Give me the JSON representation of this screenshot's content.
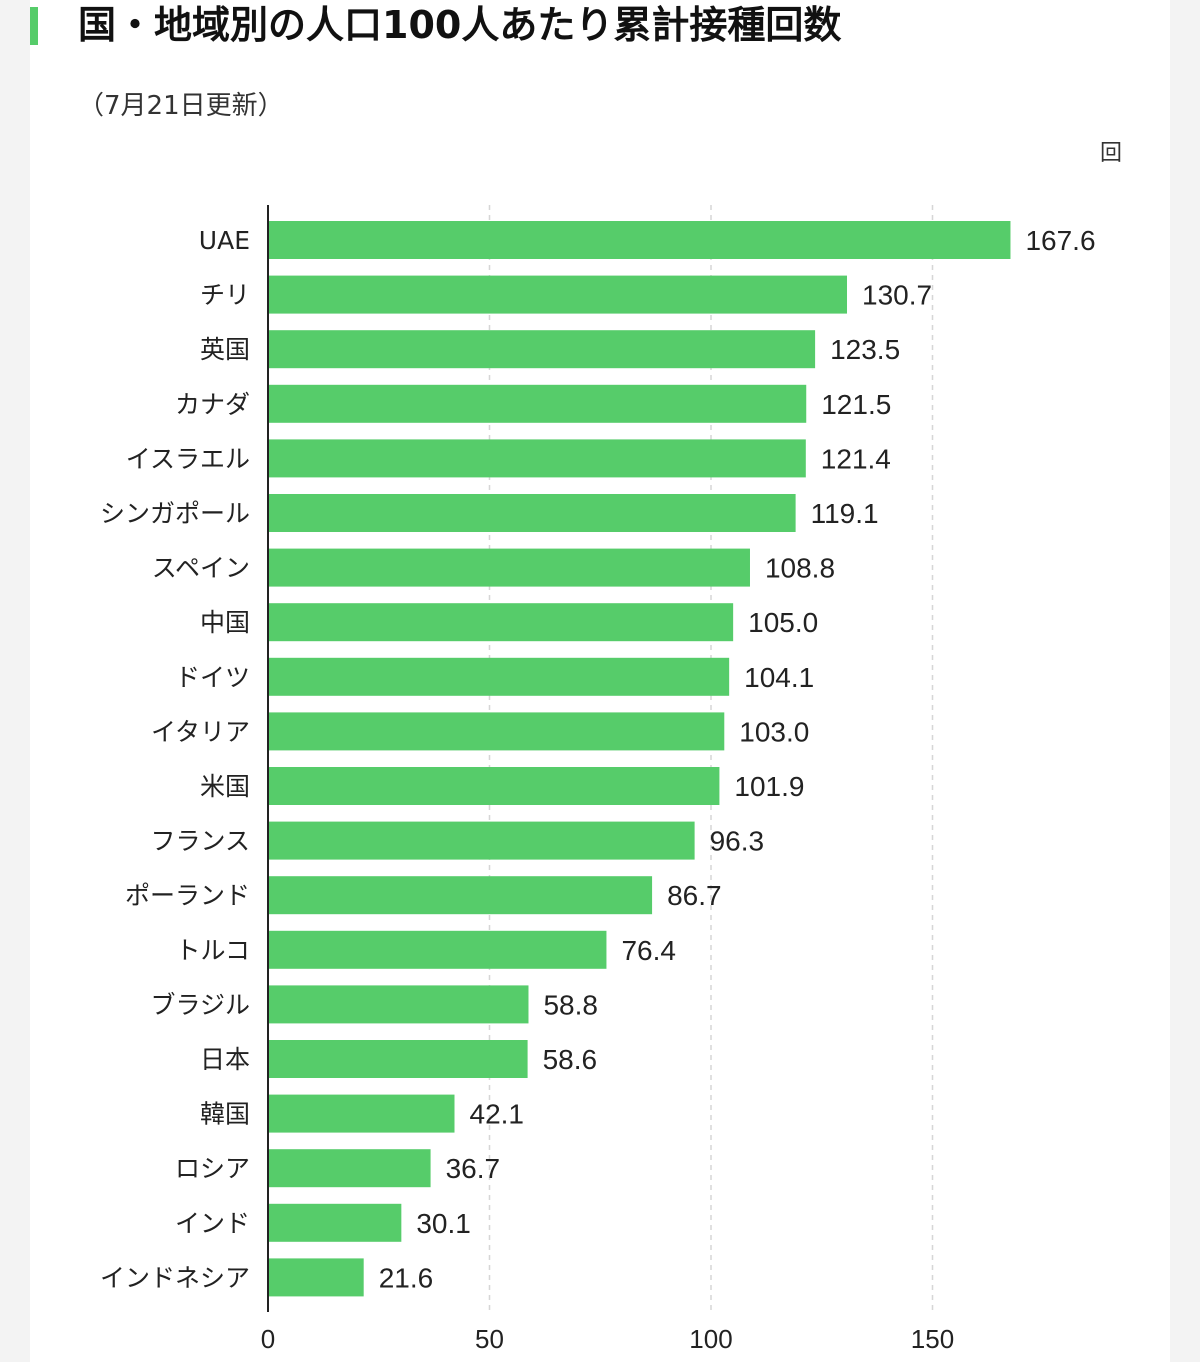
{
  "header": {
    "title": "国・地域別の人口100人あたり累計接種回数",
    "subtitle": "（7月21日更新）",
    "unit": "回"
  },
  "colors": {
    "bar": "#56cc6a",
    "accent": "#56cc6a",
    "grid": "#d6d6d6",
    "axis": "#222222"
  },
  "chart_data": {
    "type": "bar",
    "orientation": "horizontal",
    "title": "国・地域別の人口100人あたり累計接種回数",
    "subtitle": "（7月21日更新）",
    "unit": "回",
    "categories": [
      "UAE",
      "チリ",
      "英国",
      "カナダ",
      "イスラエル",
      "シンガポール",
      "スペイン",
      "中国",
      "ドイツ",
      "イタリア",
      "米国",
      "フランス",
      "ポーランド",
      "トルコ",
      "ブラジル",
      "日本",
      "韓国",
      "ロシア",
      "インド",
      "インドネシア"
    ],
    "values": [
      167.6,
      130.7,
      123.5,
      121.5,
      121.4,
      119.1,
      108.8,
      105.0,
      104.1,
      103.0,
      101.9,
      96.3,
      86.7,
      76.4,
      58.8,
      58.6,
      42.1,
      36.7,
      30.1,
      21.6
    ],
    "value_labels": [
      "167.6",
      "130.7",
      "123.5",
      "121.5",
      "121.4",
      "119.1",
      "108.8",
      "105.0",
      "104.1",
      "103.0",
      "101.9",
      "96.3",
      "86.7",
      "76.4",
      "58.8",
      "58.6",
      "42.1",
      "36.7",
      "30.1",
      "21.6"
    ],
    "x_ticks": [
      0,
      50,
      100,
      150
    ],
    "x_tick_labels": [
      "0",
      "50",
      "100",
      "150"
    ],
    "xlim": [
      0,
      200
    ],
    "grid": true,
    "grid_style": "dashed-vertical",
    "legend": "none"
  }
}
